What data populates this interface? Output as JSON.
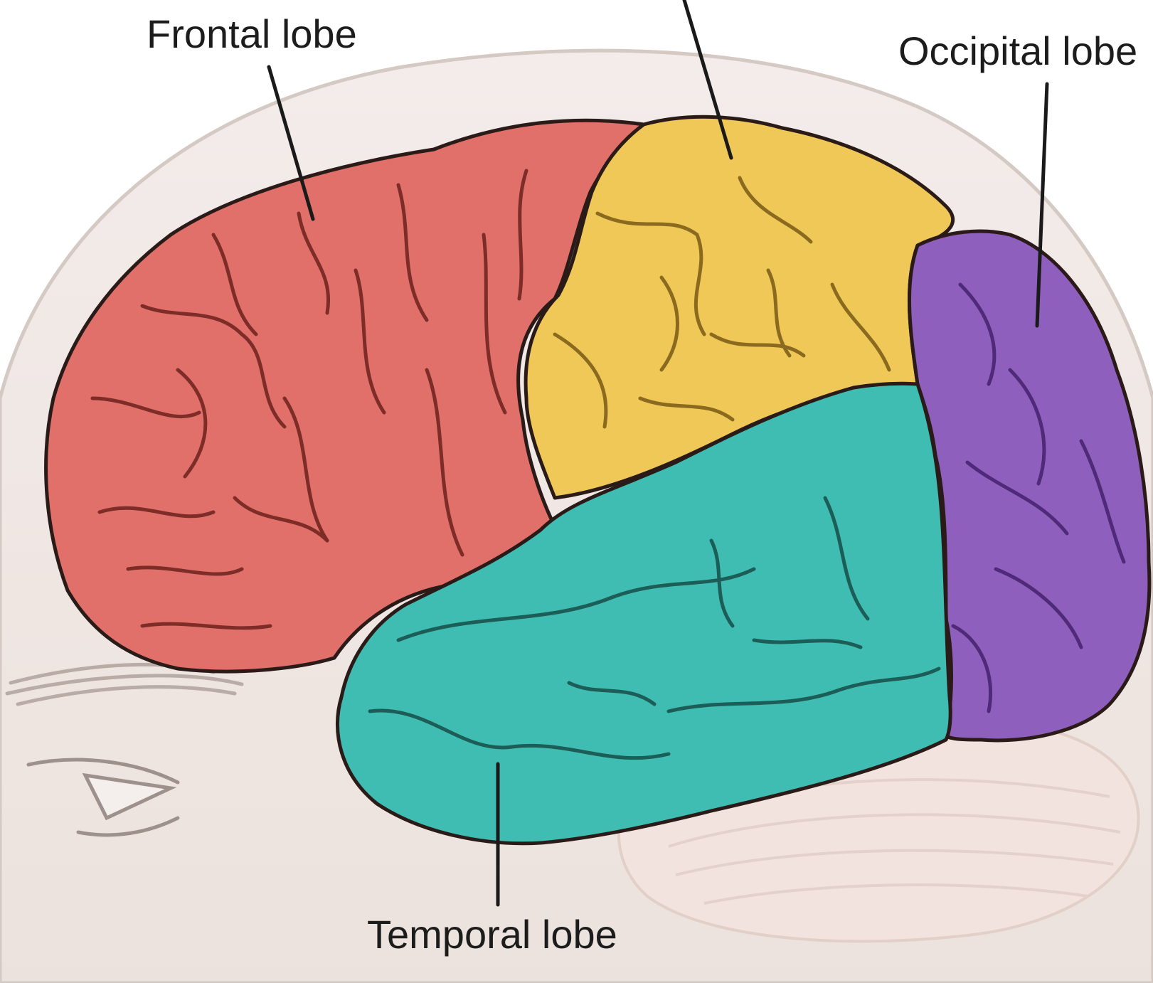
{
  "labels": {
    "frontal": "Frontal lobe",
    "occipital": "Occipital lobe",
    "temporal": "Temporal lobe"
  },
  "colors": {
    "background": "#ffffff",
    "head": "#efe6e1",
    "head_outline": "#d4c9c3",
    "frontal": "#e07069",
    "parietal": "#f0c857",
    "occipital": "#8f5fbe",
    "temporal": "#3fbdb2",
    "cerebellum": "#f2e3de",
    "outline": "#2a1b18",
    "leader_line": "#1a1a1a"
  }
}
